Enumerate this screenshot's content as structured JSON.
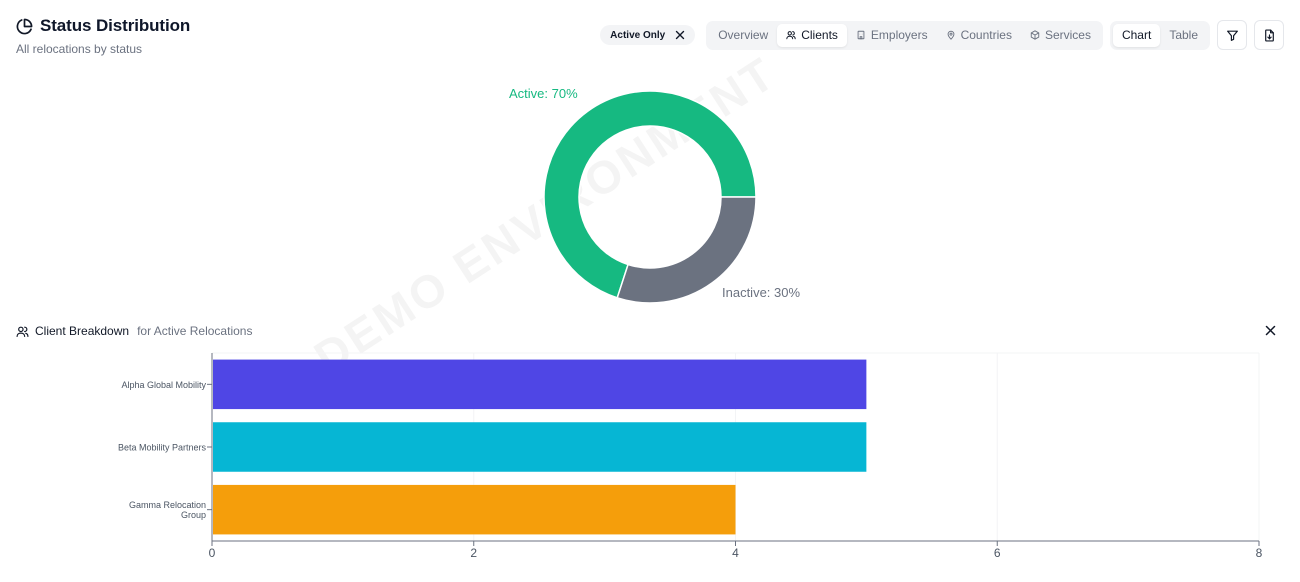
{
  "header": {
    "title": "Status Distribution",
    "subtitle": "All relocations by status"
  },
  "filter_chip": {
    "label": "Active Only"
  },
  "view_tabs": [
    {
      "label": "Overview",
      "icon": "",
      "active": false
    },
    {
      "label": "Clients",
      "icon": "users-icon",
      "active": true
    },
    {
      "label": "Employers",
      "icon": "building-icon",
      "active": false
    },
    {
      "label": "Countries",
      "icon": "map-pin-icon",
      "active": false
    },
    {
      "label": "Services",
      "icon": "package-icon",
      "active": false
    }
  ],
  "mode_tabs": [
    {
      "label": "Chart",
      "active": true
    },
    {
      "label": "Table",
      "active": false
    }
  ],
  "watermark": "DEMO ENVIRONMENT",
  "breakdown": {
    "title": "Client Breakdown",
    "subtitle": "for Active Relocations"
  },
  "chart_data": [
    {
      "type": "pie",
      "style": "donut",
      "labels": [
        "Active",
        "Inactive"
      ],
      "values": [
        70,
        30
      ],
      "slice_labels": [
        "Active: 70%",
        "Inactive: 30%"
      ],
      "colors": [
        "#16b981",
        "#6b7280"
      ]
    },
    {
      "type": "bar",
      "orientation": "horizontal",
      "categories": [
        "Alpha Global Mobility",
        "Beta Mobility Partners",
        "Gamma Relocation Group"
      ],
      "category_lines": [
        [
          "Alpha Global Mobility"
        ],
        [
          "Beta Mobility Partners"
        ],
        [
          "Gamma Relocation",
          "Group"
        ]
      ],
      "values": [
        5,
        5,
        4
      ],
      "colors": [
        "#4f46e5",
        "#06b6d4",
        "#f59e0b"
      ],
      "xlim": [
        0,
        8
      ],
      "xticks": [
        0,
        2,
        4,
        6,
        8
      ],
      "grid": true
    }
  ]
}
